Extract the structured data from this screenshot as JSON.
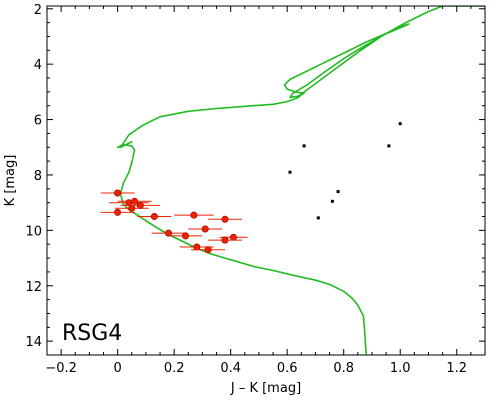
{
  "chart_data": {
    "type": "scatter",
    "title": "",
    "panel_label": "RSG4",
    "xlabel": "J – K [mag]",
    "ylabel": "K [mag]",
    "xlim": [
      -0.25,
      1.3
    ],
    "ylim": [
      14.5,
      1.9
    ],
    "y_inverted": true,
    "grid": false,
    "xticks": [
      -0.2,
      0,
      0.2,
      0.4,
      0.6,
      0.8,
      1.0,
      1.2
    ],
    "xtick_labels": [
      "−0.2",
      "0",
      "0.2",
      "0.4",
      "0.6",
      "0.8",
      "1.0",
      "1.2"
    ],
    "yticks": [
      2,
      4,
      6,
      8,
      10,
      12,
      14
    ],
    "ytick_labels": [
      "2",
      "4",
      "6",
      "8",
      "10",
      "12",
      "14"
    ],
    "colors": {
      "isochrone": "#22bb22",
      "members": "#ee2200",
      "field": "#000000"
    },
    "isochrone": {
      "x": [
        0.88,
        0.875,
        0.87,
        0.86,
        0.85,
        0.83,
        0.8,
        0.75,
        0.7,
        0.62,
        0.55,
        0.48,
        0.43,
        0.38,
        0.33,
        0.28,
        0.23,
        0.18,
        0.13,
        0.1,
        0.07,
        0.04,
        0.02,
        0.01,
        0.02,
        0.04,
        0.05,
        0.06,
        0.05,
        0.02,
        0.0,
        0.02,
        0.05,
        0.03,
        0.01,
        0.04,
        0.09,
        0.15,
        0.25,
        0.35,
        0.45,
        0.55,
        0.6,
        0.64,
        0.65,
        0.66,
        0.63,
        0.6,
        0.59,
        0.61,
        0.66,
        0.72,
        0.8,
        0.88,
        0.96,
        1.0,
        1.03,
        1.02,
        0.95,
        0.88,
        0.8,
        0.73,
        0.67,
        0.62,
        0.61,
        0.64,
        0.7,
        0.78,
        0.86,
        0.94,
        1.02,
        1.1,
        1.15,
        1.18,
        1.24,
        1.3
      ],
      "y": [
        14.5,
        13.8,
        13.1,
        12.9,
        12.7,
        12.45,
        12.2,
        11.95,
        11.8,
        11.62,
        11.45,
        11.3,
        11.15,
        11.0,
        10.85,
        10.65,
        10.4,
        10.15,
        9.85,
        9.65,
        9.45,
        9.25,
        9.05,
        8.7,
        8.3,
        7.9,
        7.55,
        7.1,
        6.95,
        6.9,
        7.0,
        6.95,
        6.8,
        6.9,
        7.0,
        6.55,
        6.2,
        5.9,
        5.7,
        5.6,
        5.52,
        5.45,
        5.35,
        5.2,
        5.1,
        5.05,
        5.0,
        4.9,
        4.75,
        4.55,
        4.3,
        4.0,
        3.6,
        3.2,
        2.85,
        2.65,
        2.55,
        2.6,
        2.9,
        3.3,
        3.8,
        4.3,
        4.75,
        5.05,
        5.2,
        5.15,
        4.7,
        4.1,
        3.5,
        2.95,
        2.5,
        2.1,
        1.9,
        1.9,
        1.9,
        1.9
      ]
    },
    "members": {
      "x": [
        0.0,
        0.04,
        0.06,
        0.05,
        0.08,
        0.0,
        0.13,
        0.27,
        0.38,
        0.31,
        0.41,
        0.18,
        0.24,
        0.38,
        0.28,
        0.32
      ],
      "y": [
        8.65,
        9.0,
        8.95,
        9.2,
        9.1,
        9.35,
        9.5,
        9.45,
        9.6,
        9.95,
        10.25,
        10.1,
        10.2,
        10.35,
        10.6,
        10.7
      ],
      "xerr": [
        0.06,
        0.07,
        0.06,
        0.06,
        0.07,
        0.06,
        0.06,
        0.07,
        0.06,
        0.06,
        0.05,
        0.06,
        0.06,
        0.06,
        0.06,
        0.06
      ]
    },
    "field": {
      "x": [
        1.0,
        0.66,
        0.96,
        0.61,
        0.78,
        0.76,
        0.71
      ],
      "y": [
        6.15,
        6.95,
        6.95,
        7.9,
        8.6,
        8.95,
        9.55
      ]
    }
  }
}
